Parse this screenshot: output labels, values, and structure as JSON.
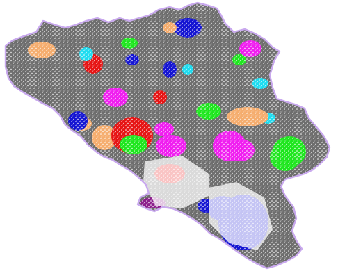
{
  "map": {
    "kind": "clustered-region-map",
    "background_color": "#ffffff",
    "border_color": "#c9a9ee",
    "base_color": "#6e6e6e",
    "speckle_color": "#ffffff",
    "cluster_colors": [
      "#1414d2",
      "#e61414",
      "#1ee61e",
      "#f01ef0",
      "#1edcf0",
      "#f5ad6e",
      "#8c1e8c",
      "#6e6e6e"
    ],
    "clusters": [
      {
        "id": "north-west-grey",
        "color_index": 7
      },
      {
        "id": "west-orange",
        "color_index": 5
      },
      {
        "id": "central-red",
        "color_index": 1
      },
      {
        "id": "central-magenta",
        "color_index": 3
      },
      {
        "id": "central-green",
        "color_index": 2
      },
      {
        "id": "north-blue",
        "color_index": 0
      },
      {
        "id": "north-cyan",
        "color_index": 4
      },
      {
        "id": "east-orange",
        "color_index": 5
      },
      {
        "id": "east-magenta",
        "color_index": 3
      },
      {
        "id": "east-green",
        "color_index": 2
      },
      {
        "id": "south-blue",
        "color_index": 0
      },
      {
        "id": "south-west-purple",
        "color_index": 6
      }
    ]
  }
}
